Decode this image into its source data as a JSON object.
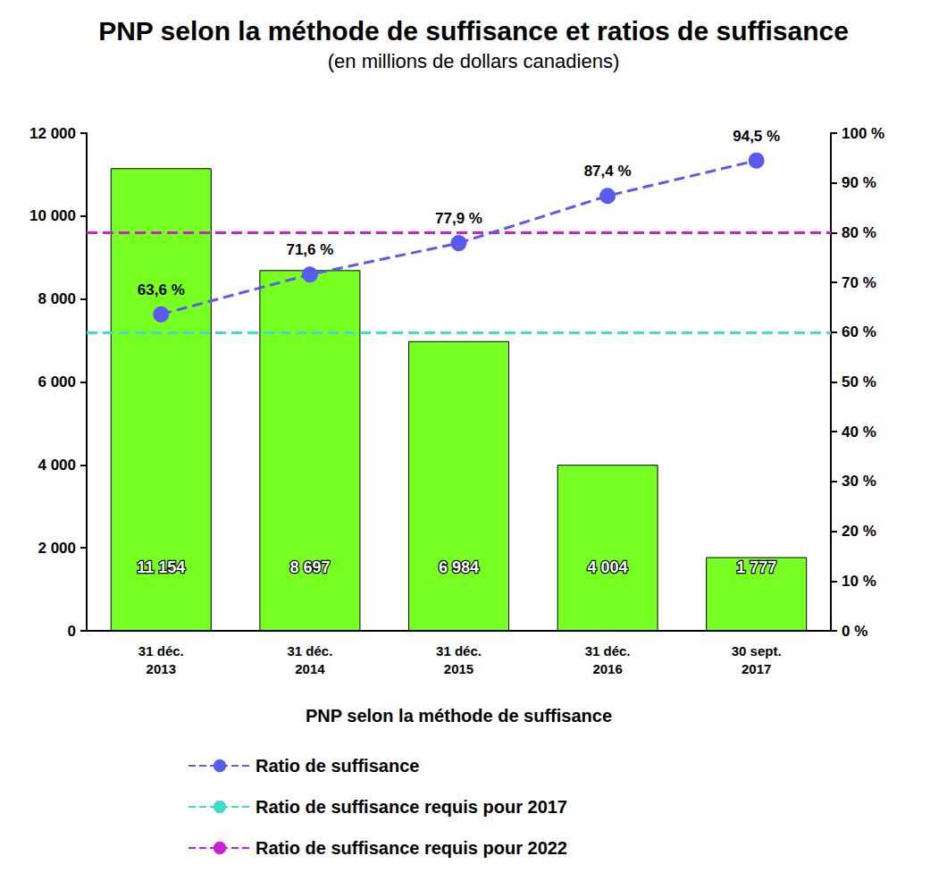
{
  "chart_data": {
    "type": "bar",
    "title": "PNP selon la méthode de suffisance et ratios de suffisance",
    "subtitle": "(en millions de dollars canadiens)",
    "x_label": "PNP selon la méthode de suffisance",
    "categories": [
      "31 déc.\n2013",
      "31 déc.\n2014",
      "31 déc.\n2015",
      "31 déc.\n2016",
      "30 sept.\n2017"
    ],
    "ylim": [
      0,
      12000
    ],
    "yticks": [
      {
        "value": 0,
        "label": "0"
      },
      {
        "value": 2000,
        "label": "2 000"
      },
      {
        "value": 4000,
        "label": "4 000"
      },
      {
        "value": 6000,
        "label": "6 000"
      },
      {
        "value": 8000,
        "label": "8 000"
      },
      {
        "value": 10000,
        "label": "10 000"
      },
      {
        "value": 12000,
        "label": "12 000"
      }
    ],
    "y2lim": [
      0,
      100
    ],
    "y2ticks": [
      {
        "value": 0,
        "label": "0 %"
      },
      {
        "value": 10,
        "label": "10 %"
      },
      {
        "value": 20,
        "label": "20 %"
      },
      {
        "value": 30,
        "label": "30 %"
      },
      {
        "value": 40,
        "label": "40 %"
      },
      {
        "value": 50,
        "label": "50 %"
      },
      {
        "value": 60,
        "label": "60 %"
      },
      {
        "value": 70,
        "label": "70 %"
      },
      {
        "value": 80,
        "label": "80 %"
      },
      {
        "value": 90,
        "label": "90 %"
      },
      {
        "value": 100,
        "label": "100 %"
      }
    ],
    "grid": false,
    "legend": "bottom",
    "series": [
      {
        "type": "bar",
        "color": "#77ff22",
        "data_labels": true,
        "values": [
          11154,
          8697,
          6984,
          4004,
          1777
        ],
        "value_labels": [
          "11 154",
          "8 697",
          "6 984",
          "4 004",
          "1 777"
        ]
      },
      {
        "name": "Ratio de suffisance",
        "type": "line",
        "axis": "y2",
        "color": "#5a5aee",
        "marker": "circle",
        "line_style": "dashed",
        "data_labels": true,
        "values": [
          63.6,
          71.6,
          77.9,
          87.4,
          94.5
        ],
        "value_labels": [
          "63,6 %",
          "71,6 %",
          "77,9 %",
          "87,4 %",
          "94,5 %"
        ]
      },
      {
        "name": "Ratio de suffisance requis pour 2017",
        "type": "hline",
        "axis": "y2",
        "color": "#3fdcc8",
        "line_style": "dashed",
        "value": 60
      },
      {
        "name": "Ratio de suffisance requis pour 2022",
        "type": "hline",
        "axis": "y2",
        "color": "#cc22cc",
        "line_style": "dashed",
        "value": 80
      }
    ]
  }
}
